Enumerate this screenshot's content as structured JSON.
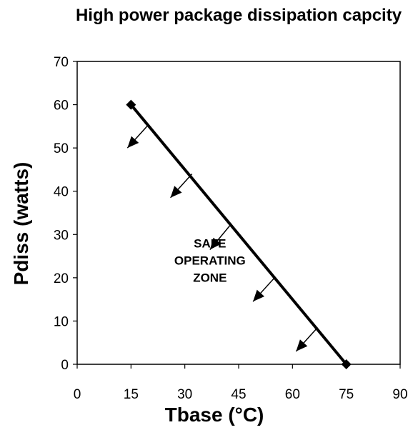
{
  "chart_data": {
    "type": "line",
    "title": "High power package dissipation capcity",
    "xlabel": "Tbase (°C)",
    "ylabel": "Pdiss (watts)",
    "xlim": [
      0,
      90
    ],
    "ylim": [
      0,
      70
    ],
    "xticks": [
      0,
      15,
      30,
      45,
      60,
      75,
      90
    ],
    "yticks": [
      0,
      10,
      20,
      30,
      40,
      50,
      60,
      70
    ],
    "x_tick_labels": [
      "0",
      "15",
      "30",
      "45",
      "60",
      "75",
      "90"
    ],
    "y_tick_labels": [
      "0",
      "10",
      "20",
      "30",
      "40",
      "50",
      "60",
      "70"
    ],
    "grid": false,
    "series": [
      {
        "points": [
          {
            "x": 15,
            "y": 60
          },
          {
            "x": 75,
            "y": 0
          }
        ],
        "marker": "diamond",
        "color": "#000000"
      }
    ],
    "annotations": [
      {
        "text": [
          "SAFE",
          "OPERATING",
          "ZONE"
        ],
        "x": 37,
        "y": 24
      }
    ],
    "arrows": [
      {
        "from": [
          20,
          55.5
        ],
        "to": [
          14,
          50
        ]
      },
      {
        "from": [
          32,
          44
        ],
        "to": [
          26,
          38.5
        ]
      },
      {
        "from": [
          43,
          32.5
        ],
        "to": [
          37,
          26.5
        ]
      },
      {
        "from": [
          55,
          20
        ],
        "to": [
          49,
          14.5
        ]
      },
      {
        "from": [
          67,
          8.5
        ],
        "to": [
          61,
          3
        ]
      }
    ]
  }
}
